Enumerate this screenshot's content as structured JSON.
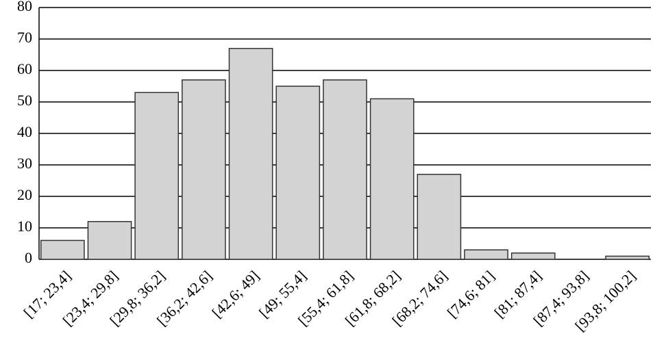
{
  "chart_data": {
    "type": "bar",
    "categories": [
      "[17; 23,4]",
      "[23,4; 29,8]",
      "[29,8; 36,2]",
      "[36,2; 42,6]",
      "[42,6; 49]",
      "[49; 55,4]",
      "[55,4; 61,8]",
      "[61,8; 68,2]",
      "[68,2; 74,6]",
      "[74,6; 81]",
      "[81; 87,4]",
      "[87,4; 93,8]",
      "[93,8; 100,2]"
    ],
    "values": [
      6,
      12,
      53,
      57,
      67,
      55,
      57,
      51,
      27,
      3,
      2,
      0,
      1
    ],
    "color": "#d3d3d3",
    "ylim": [
      0,
      80
    ],
    "yticks": [
      0,
      10,
      20,
      30,
      40,
      50,
      60,
      70,
      80
    ],
    "grid": true
  }
}
